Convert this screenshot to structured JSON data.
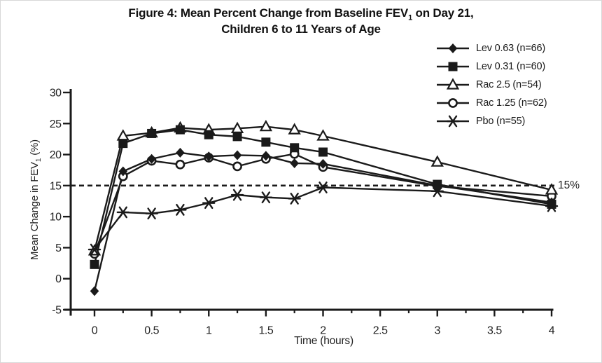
{
  "labels": {
    "title_line1_pre": "Figure 4: Mean Percent Change from Baseline FEV",
    "title_sub": "1",
    "title_line1_post": " on Day 21,",
    "title_line2": "Children 6 to 11 Years of Age",
    "ylabel_pre": "Mean Change in FEV",
    "ylabel_sub": "1",
    "ylabel_post": " (%)",
    "xlabel": "Time (hours)",
    "threshold_label": "15%"
  },
  "colors": {
    "ink": "#1a1a1a",
    "background": "#ffffff"
  },
  "chart_data": {
    "type": "line",
    "title": "Figure 4: Mean Percent Change from Baseline FEV1 on Day 21, Children 6 to 11 Years of Age",
    "xlabel": "Time (hours)",
    "ylabel": "Mean Change in FEV1 (%)",
    "xlim": [
      0,
      4
    ],
    "ylim": [
      -5,
      30
    ],
    "grid": false,
    "legend_position": "top-right",
    "threshold_value": 15,
    "threshold_style": "dashed",
    "x_tick_values": [
      0,
      0.5,
      1,
      1.5,
      2,
      2.5,
      3,
      3.5,
      4
    ],
    "x_tick_labels": [
      "0",
      "0.5",
      "1",
      "1.5",
      "2",
      "2.5",
      "3",
      "3.5",
      "4"
    ],
    "x_minor_tick_values": [
      0.25,
      0.75,
      1.25,
      1.75,
      2.25,
      2.75,
      3.25,
      3.75
    ],
    "y_tick_values": [
      -5,
      0,
      5,
      10,
      15,
      20,
      25,
      30
    ],
    "y_tick_labels": [
      "-5",
      "0",
      "5",
      "10",
      "15",
      "20",
      "25",
      "30"
    ],
    "x": [
      0,
      0.25,
      0.5,
      0.75,
      1,
      1.25,
      1.5,
      1.75,
      2,
      3,
      4
    ],
    "series": [
      {
        "name": "Lev 0.63 (n=66)",
        "marker": "diamond-filled",
        "values": [
          -2.0,
          17.3,
          19.3,
          20.3,
          19.7,
          19.9,
          19.8,
          18.6,
          18.5,
          15.0,
          12.3
        ]
      },
      {
        "name": "Lev 0.31 (n=60)",
        "marker": "square-filled",
        "values": [
          2.3,
          21.8,
          23.4,
          24.0,
          23.2,
          22.9,
          22.0,
          21.1,
          20.4,
          15.2,
          12.0
        ]
      },
      {
        "name": "Rac 2.5 (n=54)",
        "marker": "triangle-open",
        "values": [
          4.5,
          23.0,
          23.5,
          24.3,
          24.0,
          24.2,
          24.5,
          24.0,
          23.0,
          18.8,
          14.3
        ]
      },
      {
        "name": "Rac 1.25 (n=62)",
        "marker": "circle-open",
        "values": [
          4.0,
          16.5,
          19.0,
          18.4,
          19.5,
          18.1,
          19.3,
          20.1,
          18.0,
          14.9,
          13.3
        ]
      },
      {
        "name": "Pbo (n=55)",
        "marker": "asterisk",
        "values": [
          4.7,
          10.7,
          10.5,
          11.1,
          12.2,
          13.5,
          13.1,
          12.9,
          14.7,
          14.1,
          11.7
        ]
      }
    ]
  }
}
